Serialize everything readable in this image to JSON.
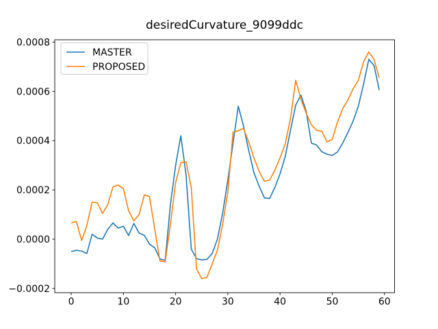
{
  "chart_data": {
    "type": "line",
    "title": "desiredCurvature_9099ddc",
    "xlabel": "",
    "ylabel": "",
    "grid": false,
    "legend_position": "upper left",
    "xlim": [
      -3.15,
      61.93
    ],
    "ylim": [
      -0.000217,
      0.0008095
    ],
    "xticks": [
      0,
      10,
      20,
      30,
      40,
      50,
      60
    ],
    "xtick_labels": [
      "0",
      "10",
      "20",
      "30",
      "40",
      "50",
      "60"
    ],
    "yticks": [
      -0.0002,
      0.0,
      0.0002,
      0.0004,
      0.0006,
      0.0008
    ],
    "ytick_labels": [
      "−0.0002",
      "0.0000",
      "0.0002",
      "0.0004",
      "0.0006",
      "0.0008"
    ],
    "x": [
      0,
      1,
      2,
      3,
      4,
      5,
      6,
      7,
      8,
      9,
      10,
      11,
      12,
      13,
      14,
      15,
      16,
      17,
      18,
      19,
      20,
      21,
      22,
      23,
      24,
      25,
      26,
      27,
      28,
      29,
      30,
      31,
      32,
      33,
      34,
      35,
      36,
      37,
      38,
      39,
      40,
      41,
      42,
      43,
      44,
      45,
      46,
      47,
      48,
      49,
      50,
      51,
      52,
      53,
      54,
      55,
      56,
      57,
      58,
      59
    ],
    "series": [
      {
        "name": "MASTER",
        "color": "#1f77b4",
        "values": [
          -5e-05,
          -4.5e-05,
          -4.8e-05,
          -5.8e-05,
          2e-05,
          5e-06,
          0.0,
          4e-05,
          6.6e-05,
          4.5e-05,
          5.3e-05,
          1.5e-05,
          6.4e-05,
          2.5e-05,
          1.6e-05,
          -2e-05,
          -3.5e-05,
          -8e-05,
          -8.6e-05,
          0.00014,
          0.0003,
          0.00042,
          0.00026,
          -4e-05,
          -7.9e-05,
          -8.4e-05,
          -8.2e-05,
          -5.8e-05,
          0.0,
          0.000105,
          0.00024,
          0.00039,
          0.00054,
          0.00046,
          0.00036,
          0.00027,
          0.000215,
          0.000168,
          0.000165,
          0.00021,
          0.000265,
          0.000336,
          0.000442,
          0.000544,
          0.000585,
          0.00052,
          0.00039,
          0.000382,
          0.000355,
          0.000345,
          0.00034,
          0.000354,
          0.00039,
          0.000433,
          0.00048,
          0.00054,
          0.00063,
          0.00073,
          0.000705,
          0.000605
        ]
      },
      {
        "name": "PROPOSED",
        "color": "#ff7f0e",
        "values": [
          6.6e-05,
          7.2e-05,
          -5e-06,
          5.5e-05,
          0.00015,
          0.000148,
          0.000105,
          0.00014,
          0.000212,
          0.00022,
          0.000205,
          0.000115,
          7.5e-05,
          0.0001,
          0.00018,
          0.000173,
          4e-05,
          -8.8e-05,
          -9.2e-05,
          6e-05,
          0.00023,
          0.00031,
          0.000315,
          0.00021,
          -0.00012,
          -0.00016,
          -0.000155,
          -0.0001,
          -4.5e-05,
          6e-05,
          0.000192,
          0.000435,
          0.00044,
          0.00045,
          0.000395,
          0.00033,
          0.000275,
          0.000235,
          0.00024,
          0.00028,
          0.00033,
          0.000387,
          0.00049,
          0.000645,
          0.000568,
          0.000512,
          0.000465,
          0.000442,
          0.000438,
          0.000395,
          0.000405,
          0.000475,
          0.00053,
          0.000565,
          0.00061,
          0.000645,
          0.00072,
          0.00076,
          0.00073,
          0.000655
        ]
      }
    ]
  }
}
